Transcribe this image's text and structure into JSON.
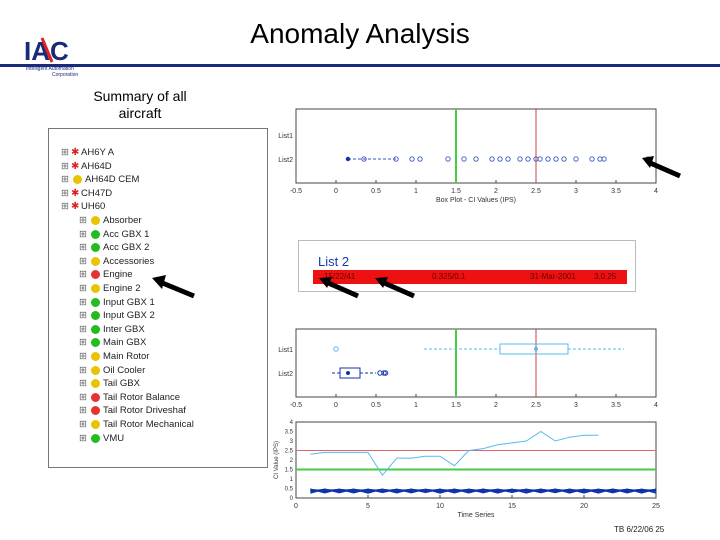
{
  "header": {
    "title": "Anomaly Analysis",
    "logo_text": "IAC",
    "logo_subtitle_1": "Intelligent Automation",
    "logo_subtitle_2": "Corporation"
  },
  "summary_label": "Summary of all aircraft",
  "tree": {
    "items": [
      {
        "label": "AH6Y A",
        "status": "star"
      },
      {
        "label": "AH64D",
        "status": "star"
      },
      {
        "label": "AH64D CEM",
        "status": "yellow"
      },
      {
        "label": "CH47D",
        "status": "star"
      },
      {
        "label": "UH60",
        "status": "star"
      },
      {
        "label": "Absorber",
        "status": "yellow"
      },
      {
        "label": "Acc GBX 1",
        "status": "green"
      },
      {
        "label": "Acc GBX 2",
        "status": "green"
      },
      {
        "label": "Accessories",
        "status": "yellow"
      },
      {
        "label": "Engine",
        "status": "red"
      },
      {
        "label": "Engine 2",
        "status": "yellow"
      },
      {
        "label": "Input GBX 1",
        "status": "green"
      },
      {
        "label": "Input GBX 2",
        "status": "green"
      },
      {
        "label": "Inter GBX",
        "status": "green"
      },
      {
        "label": "Main GBX",
        "status": "green"
      },
      {
        "label": "Main Rotor",
        "status": "yellow"
      },
      {
        "label": "Oil Cooler",
        "status": "yellow"
      },
      {
        "label": "Tail GBX",
        "status": "yellow"
      },
      {
        "label": "Tail Rotor Balance",
        "status": "red"
      },
      {
        "label": "Tail Rotor Driveshaf",
        "status": "red"
      },
      {
        "label": "Tail Rotor Mechanical",
        "status": "yellow"
      },
      {
        "label": "VMU",
        "status": "green"
      }
    ]
  },
  "list_panel": {
    "title": "List 2",
    "row": [
      "15/22/41",
      "0.325/0.1",
      "31-Mar-2001",
      "3.0.25"
    ]
  },
  "footer": "TB 6/22/06 25",
  "chart_data": [
    {
      "type": "scatter",
      "title": "",
      "xlabel": "Box Plot - CI Values (IPS)",
      "ylabel": "",
      "categories": [
        "List1",
        "List2"
      ],
      "xlim": [
        -0.5,
        4
      ],
      "xticks": [
        "-0.5",
        "0",
        "0.5",
        "1",
        "1.5",
        "2",
        "2.5",
        "3",
        "3.5",
        "4"
      ],
      "threshold_green": 1.5,
      "threshold_red": 2.5,
      "series": [
        {
          "category": "List2",
          "values": [
            0.15,
            0.35,
            0.75,
            0.95,
            1.05,
            1.4,
            1.6,
            1.75,
            1.95,
            2.05,
            2.15,
            2.3,
            2.4,
            2.5,
            2.55,
            2.65,
            2.75,
            2.85,
            3.0,
            3.2,
            3.3,
            3.35,
            3.9
          ]
        }
      ]
    },
    {
      "type": "scatter",
      "title": "",
      "xlabel": "",
      "ylabel": "",
      "categories": [
        "List1",
        "List2"
      ],
      "xlim": [
        -0.5,
        4
      ],
      "xticks": [
        "-0.5",
        "0",
        "0.5",
        "1",
        "1.5",
        "2",
        "2.5",
        "3",
        "3.5",
        "4"
      ],
      "threshold_green": 1.5,
      "threshold_red": 2.5,
      "series": [
        {
          "category": "List1",
          "box": [
            2.05,
            2.5,
            2.9
          ],
          "whiskers": [
            1.1,
            3.6
          ],
          "outliers": [
            0.0
          ]
        },
        {
          "category": "List2",
          "box": [
            0.05,
            0.15,
            0.3
          ],
          "whiskers": [
            -0.05,
            0.5
          ],
          "outliers": [
            0.55,
            0.6,
            0.62
          ]
        }
      ]
    },
    {
      "type": "line",
      "title": "",
      "xlabel": "Time Series",
      "ylabel": "CI Value (IPS)",
      "xlim": [
        0,
        25
      ],
      "ylim": [
        0,
        4
      ],
      "xticks": [
        "0",
        "5",
        "10",
        "15",
        "20",
        "25"
      ],
      "yticks": [
        "0",
        "0.5",
        "1",
        "1.5",
        "2",
        "2.5",
        "3",
        "3.5",
        "4"
      ],
      "threshold_green": 1.5,
      "threshold_red": 2.5,
      "series": [
        {
          "name": "",
          "x": [
            1,
            2,
            3,
            4,
            5,
            6,
            7,
            8,
            9,
            10,
            11,
            12,
            13,
            14,
            15,
            16,
            17,
            18,
            19,
            20,
            21
          ],
          "values": [
            2.3,
            2.4,
            2.4,
            2.4,
            2.4,
            1.2,
            2.1,
            2.1,
            2.2,
            2.2,
            1.7,
            2.5,
            2.6,
            2.8,
            2.9,
            3.0,
            3.5,
            3.0,
            3.2,
            3.3,
            3.3
          ]
        }
      ]
    }
  ]
}
